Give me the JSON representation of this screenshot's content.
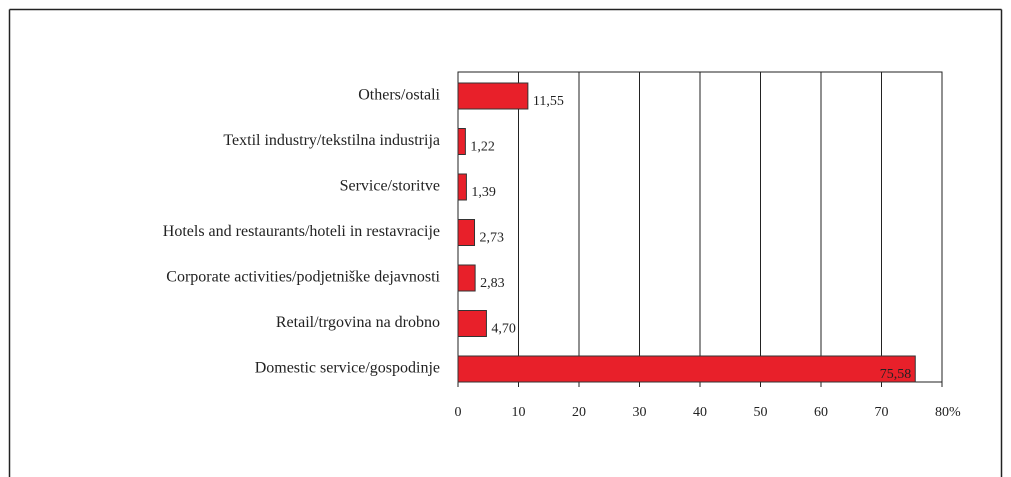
{
  "chart_data": {
    "type": "bar",
    "orientation": "horizontal",
    "categories": [
      "Others/ostali",
      "Textil industry/tekstilna industrija",
      "Service/storitve",
      "Hotels and restaurants/hoteli in restavracije",
      "Corporate activities/podjetniške dejavnosti",
      "Retail/trgovina na drobno",
      "Domestic service/gospodinje"
    ],
    "values": [
      11.55,
      1.22,
      1.39,
      2.73,
      2.83,
      4.7,
      75.58
    ],
    "value_labels": [
      "11,55",
      "1,22",
      "1,39",
      "2,73",
      "2,83",
      "4,70",
      "75,58"
    ],
    "color": "#e8202a",
    "xlim": [
      0,
      80
    ],
    "xticks": [
      0,
      10,
      20,
      30,
      40,
      50,
      60,
      70,
      80
    ],
    "x_unit": "%",
    "grid": true
  }
}
